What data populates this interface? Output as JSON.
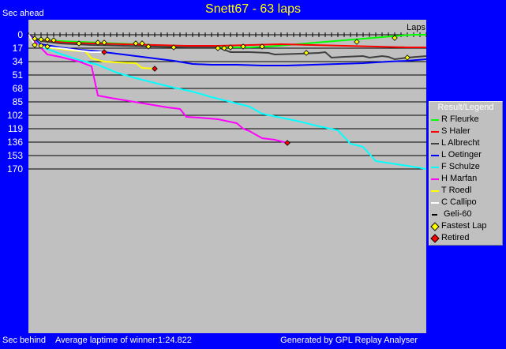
{
  "chart_data": {
    "type": "line",
    "title": "Snett67 - 63 laps",
    "ylabel_top": "Sec ahead",
    "ylabel_bottom": "Sec behind",
    "xlabel": "Laps",
    "footer_left": "Average laptime of winner:1:24.822",
    "footer_right": "Generated by GPL Replay Analyser",
    "y_ticks": [
      "0",
      "17",
      "34",
      "51",
      "68",
      "85",
      "102",
      "119",
      "136",
      "153",
      "170"
    ],
    "ylim": [
      0,
      170
    ],
    "xlim": [
      0,
      63
    ],
    "grid": true,
    "legend_title": "Result/Legend",
    "legend_position": "right",
    "series": [
      {
        "name": "R Fleurke",
        "color": "#00ff00",
        "points": [
          [
            0,
            0
          ],
          [
            1,
            5
          ],
          [
            2,
            6
          ],
          [
            3,
            7
          ],
          [
            5,
            8
          ],
          [
            8,
            9
          ],
          [
            11,
            10
          ],
          [
            14,
            11
          ],
          [
            17,
            12
          ],
          [
            20,
            13
          ],
          [
            23,
            14
          ],
          [
            26,
            15
          ],
          [
            29,
            16
          ],
          [
            32,
            16
          ],
          [
            35,
            16
          ],
          [
            38,
            15
          ],
          [
            41,
            13
          ],
          [
            44,
            11
          ],
          [
            47,
            9
          ],
          [
            50,
            7
          ],
          [
            53,
            5
          ],
          [
            56,
            3
          ],
          [
            59,
            1
          ],
          [
            61,
            0
          ],
          [
            63,
            0
          ]
        ],
        "fastest": [
          [
            1,
            5
          ],
          [
            2,
            6
          ],
          [
            3,
            6
          ],
          [
            4,
            7
          ],
          [
            8,
            11
          ],
          [
            11,
            10
          ],
          [
            12,
            10
          ],
          [
            17,
            11
          ],
          [
            18,
            11
          ],
          [
            19,
            15
          ],
          [
            23,
            16
          ],
          [
            37,
            15
          ],
          [
            52,
            9
          ],
          [
            58,
            4
          ]
        ]
      },
      {
        "name": "S Haler",
        "color": "#ff0000",
        "points": [
          [
            0,
            0
          ],
          [
            1,
            6
          ],
          [
            3,
            8
          ],
          [
            6,
            10
          ],
          [
            10,
            11
          ],
          [
            15,
            12
          ],
          [
            20,
            13
          ],
          [
            25,
            14
          ],
          [
            30,
            14
          ],
          [
            35,
            13
          ],
          [
            40,
            12
          ],
          [
            45,
            13
          ],
          [
            50,
            14
          ],
          [
            55,
            15
          ],
          [
            60,
            16
          ],
          [
            63,
            16
          ]
        ],
        "fastest": []
      },
      {
        "name": "L Albrecht",
        "color": "#404040",
        "points": [
          [
            0,
            0
          ],
          [
            2,
            8
          ],
          [
            5,
            11
          ],
          [
            10,
            13
          ],
          [
            15,
            14
          ],
          [
            20,
            15
          ],
          [
            25,
            16
          ],
          [
            30,
            16
          ],
          [
            31,
            19
          ],
          [
            32,
            22
          ],
          [
            35,
            22
          ],
          [
            38,
            23
          ],
          [
            39,
            25
          ],
          [
            43,
            24
          ],
          [
            46,
            23
          ],
          [
            47,
            22
          ],
          [
            48,
            29
          ],
          [
            50,
            28
          ],
          [
            53,
            27
          ],
          [
            54,
            29
          ],
          [
            56,
            27
          ],
          [
            57,
            28
          ],
          [
            58,
            31
          ],
          [
            60,
            29
          ],
          [
            63,
            27
          ]
        ],
        "fastest": [
          [
            30,
            17
          ],
          [
            31,
            17
          ],
          [
            32,
            16
          ],
          [
            34,
            15
          ],
          [
            44,
            23
          ],
          [
            60,
            29
          ]
        ]
      },
      {
        "name": "L Oetinger",
        "color": "#0000ff",
        "points": [
          [
            0,
            0
          ],
          [
            2,
            12
          ],
          [
            5,
            16
          ],
          [
            8,
            19
          ],
          [
            11,
            21
          ],
          [
            14,
            24
          ],
          [
            17,
            27
          ],
          [
            20,
            30
          ],
          [
            23,
            33
          ],
          [
            26,
            37
          ],
          [
            29,
            38
          ],
          [
            33,
            38
          ],
          [
            37,
            39
          ],
          [
            41,
            39
          ],
          [
            45,
            38
          ],
          [
            49,
            37
          ],
          [
            53,
            36
          ],
          [
            57,
            34
          ],
          [
            60,
            33
          ],
          [
            63,
            31
          ]
        ],
        "fastest": []
      },
      {
        "name": "F Schulze",
        "color": "#00ffff",
        "points": [
          [
            0,
            0
          ],
          [
            2,
            15
          ],
          [
            5,
            24
          ],
          [
            8,
            32
          ],
          [
            11,
            38
          ],
          [
            14,
            48
          ],
          [
            17,
            55
          ],
          [
            20,
            61
          ],
          [
            23,
            67
          ],
          [
            26,
            72
          ],
          [
            29,
            79
          ],
          [
            32,
            85
          ],
          [
            35,
            91
          ],
          [
            37,
            100
          ],
          [
            40,
            105
          ],
          [
            43,
            110
          ],
          [
            46,
            116
          ],
          [
            49,
            121
          ],
          [
            51,
            138
          ],
          [
            53,
            142
          ],
          [
            55,
            160
          ],
          [
            60,
            166
          ],
          [
            63,
            170
          ]
        ],
        "fastest": []
      },
      {
        "name": "H Marfan",
        "color": "#ff00ff",
        "points": [
          [
            0,
            0
          ],
          [
            3,
            25
          ],
          [
            5,
            28
          ],
          [
            8,
            34
          ],
          [
            10,
            40
          ],
          [
            11,
            77
          ],
          [
            13,
            80
          ],
          [
            16,
            84
          ],
          [
            19,
            88
          ],
          [
            22,
            92
          ],
          [
            24,
            94
          ],
          [
            25,
            104
          ],
          [
            27,
            105
          ],
          [
            30,
            107
          ],
          [
            33,
            112
          ],
          [
            34,
            119
          ],
          [
            35,
            122
          ],
          [
            37,
            131
          ],
          [
            39,
            133
          ],
          [
            41,
            137
          ]
        ],
        "retired": [
          41,
          137
        ]
      },
      {
        "name": "T Roedl",
        "color": "#ffff00",
        "points": [
          [
            0,
            0
          ],
          [
            1,
            12
          ],
          [
            2,
            15
          ],
          [
            4,
            17
          ],
          [
            7,
            20
          ],
          [
            9,
            21
          ],
          [
            10,
            30
          ],
          [
            12,
            34
          ],
          [
            14,
            35
          ],
          [
            17,
            36
          ],
          [
            18,
            42
          ],
          [
            20,
            43
          ]
        ],
        "fastest": [
          [
            1,
            13
          ],
          [
            2,
            14
          ],
          [
            3,
            15
          ]
        ],
        "retired": [
          20,
          43
        ]
      },
      {
        "name": "C Callipo",
        "color": "#ffffff",
        "points": [
          [
            0,
            0
          ],
          [
            1,
            12
          ],
          [
            2,
            15
          ],
          [
            5,
            17
          ],
          [
            8,
            20
          ],
          [
            10,
            22
          ],
          [
            12,
            22
          ]
        ],
        "retired": [
          12,
          22
        ]
      },
      {
        "name": "Geli-60",
        "color": "#000000",
        "symbol": "dash"
      },
      {
        "name": "Fastest Lap",
        "color": "#ffff00",
        "symbol": "diamond"
      },
      {
        "name": "Retired",
        "color": "#ff0000",
        "symbol": "diamond"
      }
    ]
  }
}
